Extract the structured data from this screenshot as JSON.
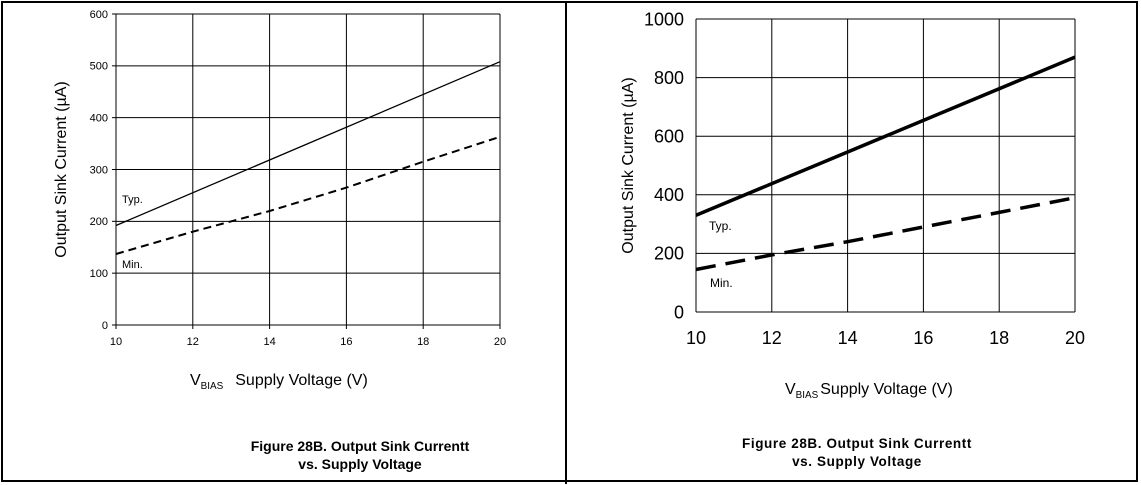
{
  "chart_data": [
    {
      "type": "line",
      "title": "",
      "xlabel_main": "V",
      "xlabel_sub": "BIAS",
      "xlabel_rest": "Supply Voltage (V)",
      "ylabel": "Output Sink Current (µA)",
      "xlim": [
        10,
        20
      ],
      "ylim": [
        0,
        600
      ],
      "xticks": [
        10,
        12,
        14,
        16,
        18,
        20
      ],
      "yticks": [
        0,
        100,
        200,
        300,
        400,
        500,
        600
      ],
      "grid": true,
      "series": [
        {
          "name": "Typ.",
          "style": "solid",
          "x": [
            10,
            20
          ],
          "y": [
            192,
            508
          ]
        },
        {
          "name": "Min.",
          "style": "dashed",
          "x": [
            10,
            10.6,
            12,
            14,
            16,
            18,
            20
          ],
          "y": [
            137,
            150,
            180,
            220,
            265,
            315,
            363
          ]
        }
      ],
      "caption_line1": "Figure 28B. Output Sink Currentt",
      "caption_line2": "vs. Supply Voltage"
    },
    {
      "type": "line",
      "title": "",
      "xlabel_main": "V",
      "xlabel_sub": "BIAS",
      "xlabel_rest": "Supply Voltage (V)",
      "ylabel": "Output Sink Current (µA)",
      "xlim": [
        10,
        20
      ],
      "ylim": [
        0,
        1000
      ],
      "xticks": [
        10,
        12,
        14,
        16,
        18,
        20
      ],
      "yticks": [
        0,
        200,
        400,
        600,
        800,
        1000
      ],
      "grid": true,
      "series": [
        {
          "name": "Typ.",
          "style": "solid",
          "x": [
            10,
            20
          ],
          "y": [
            330,
            870
          ]
        },
        {
          "name": "Min.",
          "style": "dashed",
          "x": [
            10,
            12,
            14,
            16,
            18,
            20
          ],
          "y": [
            145,
            195,
            240,
            290,
            340,
            390
          ]
        }
      ],
      "caption_line1": "Figure 28B. Output Sink Currentt",
      "caption_line2": "vs. Supply Voltage"
    }
  ]
}
